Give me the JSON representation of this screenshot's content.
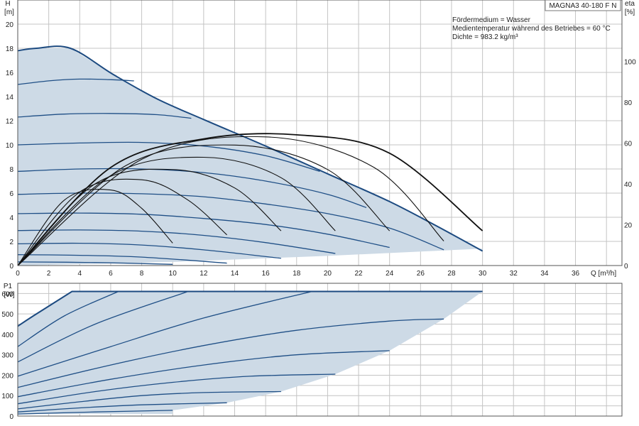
{
  "chart_data": [
    {
      "type": "line",
      "title": "MAGNA3 40-180 F N",
      "annotations": [
        "Fördermedium = Wasser",
        "Medientemperatur während des Betriebes = 60 °C",
        "Dichte = 983.2 kg/m³"
      ],
      "xlabel": "Q [m³/h]",
      "ylabel_line1": "H",
      "ylabel_line2": "[m]",
      "y2label_line1": "eta",
      "y2label_line2": "[%]",
      "xlim": [
        0,
        39
      ],
      "ylim": [
        0,
        22
      ],
      "y2lim": [
        0,
        130
      ],
      "xticks": [
        0,
        2,
        4,
        6,
        8,
        10,
        12,
        14,
        16,
        18,
        20,
        22,
        24,
        26,
        28,
        30,
        32,
        34,
        36
      ],
      "yticks": [
        0,
        2,
        4,
        6,
        8,
        10,
        12,
        14,
        16,
        18,
        20
      ],
      "y2ticks": [
        0,
        20,
        40,
        60,
        80,
        100
      ],
      "grid": true,
      "colors": {
        "curve": "#1f4f86",
        "envelope": "#1c4a80",
        "eta": "#111111",
        "fill": "#cddae6"
      },
      "envelope": {
        "x": [
          0,
          1.2,
          3.4,
          6.2,
          9.0,
          12.0,
          16.0,
          20.0,
          24.0,
          27.0,
          30.0
        ],
        "y": [
          17.8,
          18.0,
          18.0,
          15.8,
          13.8,
          12.1,
          9.9,
          7.6,
          5.3,
          3.3,
          1.2
        ]
      },
      "min_curve": {
        "x": [
          0,
          10,
          20,
          30
        ],
        "y": [
          0,
          0.3,
          0.8,
          1.4
        ]
      },
      "speed_curves": [
        {
          "x": [
            0,
            2,
            4,
            6,
            7.5
          ],
          "y": [
            15.0,
            15.3,
            15.45,
            15.4,
            15.3
          ]
        },
        {
          "x": [
            0,
            3,
            6,
            9,
            11.2
          ],
          "y": [
            12.3,
            12.55,
            12.6,
            12.5,
            12.2
          ]
        },
        {
          "x": [
            0,
            4,
            8,
            12,
            16,
            19.5
          ],
          "y": [
            10.0,
            10.15,
            10.2,
            9.9,
            9.1,
            7.8
          ]
        },
        {
          "x": [
            0,
            4,
            8,
            12,
            16,
            20,
            22.5
          ],
          "y": [
            7.8,
            8.0,
            8.0,
            7.7,
            7.0,
            5.9,
            4.8
          ]
        },
        {
          "x": [
            0,
            4,
            8,
            12,
            16,
            20,
            24,
            27.5
          ],
          "y": [
            5.9,
            6.0,
            5.95,
            5.7,
            5.1,
            4.3,
            3.1,
            1.3
          ]
        },
        {
          "x": [
            0,
            4,
            8,
            12,
            16,
            20,
            24
          ],
          "y": [
            4.3,
            4.35,
            4.25,
            3.9,
            3.4,
            2.6,
            1.5
          ]
        },
        {
          "x": [
            0,
            4,
            8,
            12,
            16,
            20.5
          ],
          "y": [
            2.9,
            2.95,
            2.85,
            2.5,
            1.9,
            1.0
          ]
        },
        {
          "x": [
            0,
            4,
            8,
            12,
            17
          ],
          "y": [
            1.8,
            1.85,
            1.7,
            1.3,
            0.6
          ]
        },
        {
          "x": [
            0,
            4,
            8,
            13.5
          ],
          "y": [
            0.9,
            0.85,
            0.7,
            0.2
          ]
        },
        {
          "x": [
            0,
            5,
            10
          ],
          "y": [
            0.3,
            0.25,
            0.1
          ]
        }
      ],
      "eta_curves": [
        {
          "x": [
            0,
            3,
            6,
            8,
            10
          ],
          "y": [
            0,
            32,
            37,
            28,
            11
          ]
        },
        {
          "x": [
            0,
            4,
            8,
            11,
            13.5
          ],
          "y": [
            0,
            36,
            42,
            32,
            15
          ]
        },
        {
          "x": [
            0,
            5,
            10,
            14,
            17
          ],
          "y": [
            0,
            40,
            47,
            38,
            17
          ]
        },
        {
          "x": [
            0,
            6,
            12,
            17,
            20.5
          ],
          "y": [
            0,
            44,
            53,
            43,
            17
          ]
        },
        {
          "x": [
            0,
            7,
            14,
            20,
            24
          ],
          "y": [
            0,
            49,
            59,
            47,
            17
          ]
        },
        {
          "x": [
            0,
            8,
            16,
            23,
            27.5
          ],
          "y": [
            0,
            52,
            63,
            48,
            12
          ]
        },
        {
          "x": [
            0,
            6,
            12,
            18,
            24,
            30
          ],
          "y": [
            0,
            48,
            62,
            64,
            55,
            17
          ]
        }
      ]
    },
    {
      "type": "line",
      "ylabel_line1": "P1",
      "ylabel_line2": "[W]",
      "xlim": [
        0,
        39
      ],
      "ylim": [
        0,
        650
      ],
      "yticks": [
        0,
        100,
        200,
        300,
        400,
        500,
        600
      ],
      "grid": true,
      "envelope": {
        "x": [
          0,
          1,
          3.5,
          10,
          20,
          30
        ],
        "y": [
          440,
          490,
          610,
          610,
          610,
          610
        ]
      },
      "min_curve": {
        "x": [
          0,
          10,
          20,
          27.5,
          30
        ],
        "y": [
          10,
          10,
          10,
          10,
          610
        ]
      },
      "power_curves": [
        {
          "x": [
            0,
            3,
            6.5
          ],
          "y": [
            340,
            490,
            610
          ]
        },
        {
          "x": [
            0,
            5,
            11
          ],
          "y": [
            265,
            450,
            610
          ]
        },
        {
          "x": [
            0,
            6,
            12,
            19
          ],
          "y": [
            195,
            340,
            480,
            610
          ]
        },
        {
          "x": [
            0,
            6,
            12,
            18,
            24,
            27.5
          ],
          "y": [
            140,
            250,
            345,
            420,
            465,
            475
          ]
        },
        {
          "x": [
            0,
            6,
            12,
            18,
            24
          ],
          "y": [
            95,
            180,
            250,
            300,
            320
          ]
        },
        {
          "x": [
            0,
            5,
            10,
            15,
            20.5
          ],
          "y": [
            60,
            120,
            165,
            195,
            205
          ]
        },
        {
          "x": [
            0,
            4,
            8,
            12,
            17
          ],
          "y": [
            35,
            70,
            100,
            115,
            120
          ]
        },
        {
          "x": [
            0,
            4,
            8,
            13.5
          ],
          "y": [
            20,
            40,
            55,
            65
          ]
        },
        {
          "x": [
            0,
            5,
            10
          ],
          "y": [
            10,
            20,
            28
          ]
        }
      ]
    }
  ]
}
